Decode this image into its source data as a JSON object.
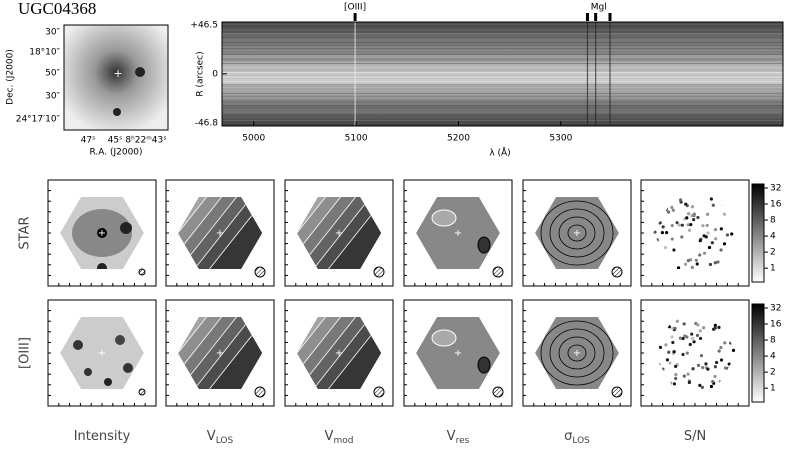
{
  "title": "UGC04368",
  "thumbnail": {
    "dec_labels": [
      "30″",
      "18°10″",
      "50″",
      "30″",
      "24°17′10″"
    ],
    "ra_labels": [
      "47ˢ",
      "45ˢ",
      "8ʰ22ᵐ43ˢ"
    ],
    "xlabel": "R.A. (J2000)",
    "ylabel": "Dec. (J2000)"
  },
  "spectrum": {
    "xlim": [
      4969,
      5517
    ],
    "xticks": [
      5000,
      5100,
      5200,
      5300
    ],
    "xlabel": "λ (Å)",
    "ylim": [
      -46.8,
      46.5
    ],
    "yticks": [
      {
        "value": 46.5,
        "label": "+46.5"
      },
      0,
      -46.8
    ],
    "ylabel": "R (arcsec)",
    "lines": [
      {
        "label": "[OIII]",
        "wavelengths": [
          5099
        ]
      },
      {
        "label": "Mgl",
        "wavelengths": [
          5326,
          5334,
          5348
        ]
      }
    ]
  },
  "maps": {
    "rows": [
      "STAR",
      "[OIII]"
    ],
    "columns": [
      {
        "label": "Intensity"
      },
      {
        "label": "V",
        "sub": "LOS"
      },
      {
        "label": "V",
        "sub": "mod"
      },
      {
        "label": "V",
        "sub": "res"
      },
      {
        "label": "σ",
        "sub": "LOS"
      },
      {
        "label": "S/N"
      }
    ],
    "colorbar": {
      "log": true,
      "ylim": [
        0.55,
        38
      ],
      "yticks": [
        1,
        2,
        4,
        8,
        16,
        32
      ]
    }
  }
}
